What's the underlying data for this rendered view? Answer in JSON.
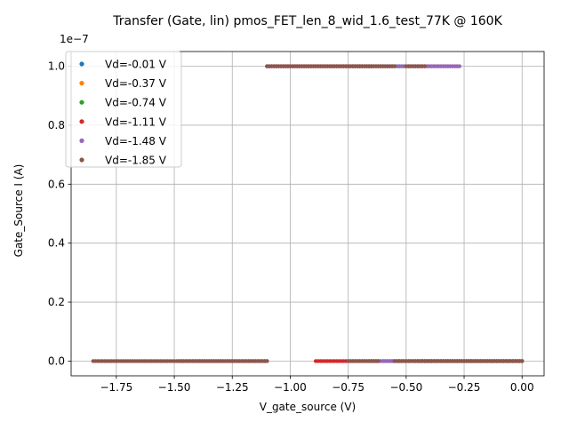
{
  "chart_data": {
    "type": "scatter",
    "title": "Transfer (Gate, lin) pmos_FET_len_8_wid_1.6_test_77K @ 160K",
    "xlabel": "V_gate_source (V)",
    "ylabel": "Gate_Source I (A)",
    "y_offset_label": "1e−7",
    "xlim": [
      -1.945,
      0.095
    ],
    "ylim": [
      -0.05,
      1.05
    ],
    "y_scale_factor": 1e-07,
    "x_ticks": [
      -1.75,
      -1.5,
      -1.25,
      -1.0,
      -0.75,
      -0.5,
      -0.25,
      0.0
    ],
    "x_tick_labels": [
      "−1.75",
      "−1.50",
      "−1.25",
      "−1.00",
      "−0.75",
      "−0.50",
      "−0.25",
      "0.00"
    ],
    "y_ticks": [
      0.0,
      0.2,
      0.4,
      0.6,
      0.8,
      1.0
    ],
    "y_tick_labels": [
      "0.0",
      "0.2",
      "0.4",
      "0.6",
      "0.8",
      "1.0"
    ],
    "grid": true,
    "legend_position": "upper-left",
    "series": [
      {
        "name": "Vd=-0.01 V",
        "color": "#1f77b4",
        "segments": [
          {
            "x_from": -0.43,
            "x_to": 0.0,
            "y": 0.0,
            "step": 0.01
          }
        ]
      },
      {
        "name": "Vd=-0.37 V",
        "color": "#ff7f0e",
        "segments": [
          {
            "x_from": -0.45,
            "x_to": -0.28,
            "y": 1.0,
            "step": 0.01
          },
          {
            "x_from": -0.45,
            "x_to": 0.0,
            "y": 0.0,
            "step": 0.01
          }
        ]
      },
      {
        "name": "Vd=-0.74 V",
        "color": "#2ca02c",
        "segments": [
          {
            "x_from": -0.75,
            "x_to": -0.45,
            "y": 1.0,
            "step": 0.01
          },
          {
            "x_from": -0.6,
            "x_to": 0.0,
            "y": 0.0,
            "step": 0.01
          }
        ]
      },
      {
        "name": "Vd=-1.11 V",
        "color": "#d62728",
        "segments": [
          {
            "x_from": -1.1,
            "x_to": -0.65,
            "y": 1.0,
            "step": 0.01
          },
          {
            "x_from": -0.89,
            "x_to": -0.62,
            "y": 0.0,
            "step": 0.01
          }
        ]
      },
      {
        "name": "Vd=-1.48 V",
        "color": "#9467bd",
        "segments": [
          {
            "x_from": -1.1,
            "x_to": -0.27,
            "y": 1.0,
            "step": 0.01
          },
          {
            "x_from": -1.48,
            "x_to": -1.1,
            "y": 0.0,
            "step": 0.01
          },
          {
            "x_from": -0.65,
            "x_to": -0.4,
            "y": 0.0,
            "step": 0.01
          }
        ]
      },
      {
        "name": "Vd=-1.85 V",
        "color": "#8c564b",
        "segments": [
          {
            "x_from": -1.1,
            "x_to": -0.55,
            "y": 1.0,
            "step": 0.01
          },
          {
            "x_from": -0.5,
            "x_to": -0.42,
            "y": 1.0,
            "step": 0.01
          },
          {
            "x_from": -1.85,
            "x_to": -1.1,
            "y": 0.0,
            "step": 0.01
          },
          {
            "x_from": -0.75,
            "x_to": -0.62,
            "y": 0.0,
            "step": 0.01
          },
          {
            "x_from": -0.55,
            "x_to": 0.0,
            "y": 0.0,
            "step": 0.01
          }
        ]
      }
    ]
  }
}
